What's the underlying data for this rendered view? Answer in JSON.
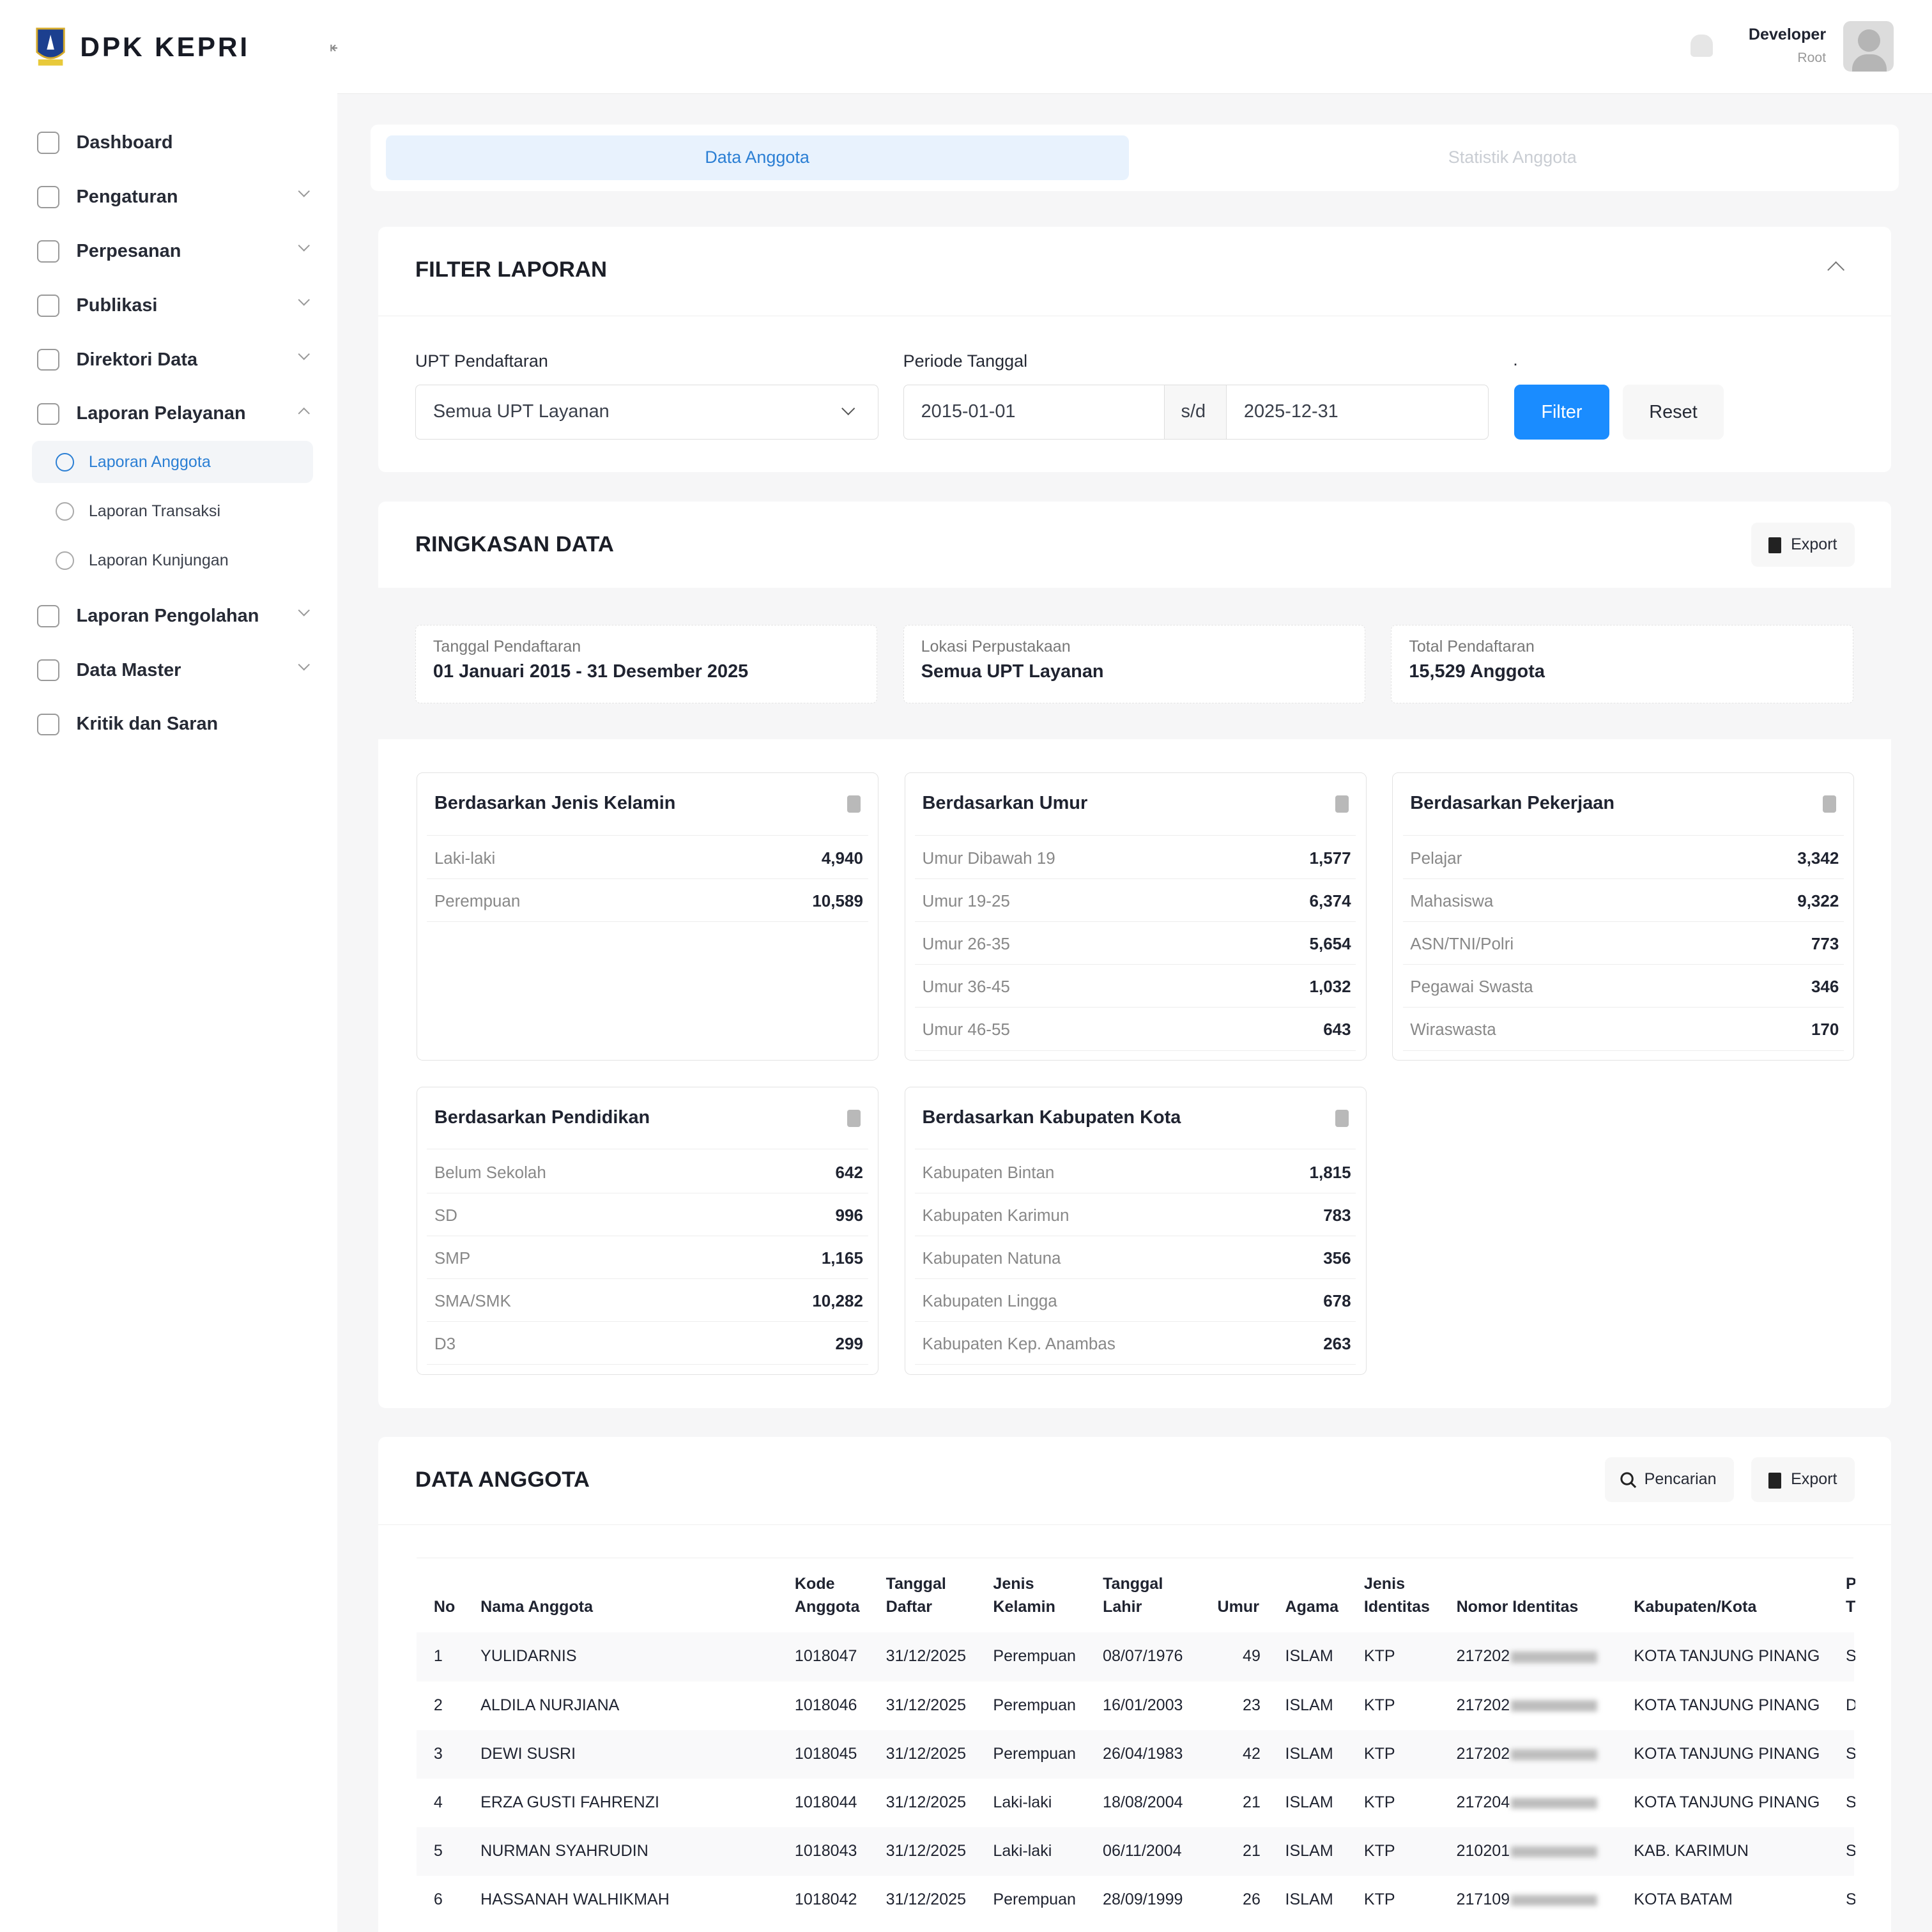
{
  "brand": {
    "title": "DPK KEPRI",
    "logo": "provincial-crest"
  },
  "sidebar": {
    "items": [
      {
        "label": "Dashboard",
        "icon": "activity-icon",
        "expandable": false
      },
      {
        "label": "Pengaturan",
        "icon": "gear-icon",
        "expandable": true
      },
      {
        "label": "Perpesanan",
        "icon": "mail-icon",
        "expandable": true
      },
      {
        "label": "Publikasi",
        "icon": "edit-icon",
        "expandable": true
      },
      {
        "label": "Direktori Data",
        "icon": "pointer-icon",
        "expandable": true
      },
      {
        "label": "Laporan Pelayanan",
        "icon": "report-icon",
        "expandable": true,
        "expanded": true
      },
      {
        "label": "Laporan Pengolahan",
        "icon": "report-icon",
        "expandable": true
      },
      {
        "label": "Data Master",
        "icon": "database-icon",
        "expandable": true
      },
      {
        "label": "Kritik dan Saran",
        "icon": "star-icon",
        "expandable": false
      }
    ],
    "subitems": [
      {
        "label": "Laporan Anggota",
        "active": true,
        "icon": "users-icon"
      },
      {
        "label": "Laporan Transaksi",
        "icon": "receipt-icon"
      },
      {
        "label": "Laporan Kunjungan",
        "icon": "location-icon"
      }
    ]
  },
  "header": {
    "user_name": "Developer",
    "user_role": "Root"
  },
  "tabs": [
    {
      "label": "Data Anggota",
      "active": true
    },
    {
      "label": "Statistik Anggota",
      "active": false
    }
  ],
  "filter": {
    "title": "FILTER LAPORAN",
    "upt_label": "UPT Pendaftaran",
    "upt_value": "Semua UPT Layanan",
    "periode_label": "Periode Tanggal",
    "date_from": "2015-01-01",
    "separator": "s/d",
    "date_to": "2025-12-31",
    "dot": ".",
    "filter_button": "Filter",
    "reset_button": "Reset"
  },
  "summary": {
    "title": "RINGKASAN DATA",
    "export": "Export",
    "boxes": [
      {
        "label": "Tanggal Pendaftaran",
        "value": "01 Januari 2015 - 31 Desember 2025"
      },
      {
        "label": "Lokasi Perpustakaan",
        "value": "Semua UPT Layanan"
      },
      {
        "label": "Total Pendaftaran",
        "value": "15,529 Anggota"
      }
    ],
    "stats": [
      {
        "title": "Berdasarkan Jenis Kelamin",
        "rows": [
          {
            "name": "Laki-laki",
            "count": "4,940"
          },
          {
            "name": "Perempuan",
            "count": "10,589"
          }
        ]
      },
      {
        "title": "Berdasarkan Umur",
        "rows": [
          {
            "name": "Umur Dibawah 19",
            "count": "1,577"
          },
          {
            "name": "Umur 19-25",
            "count": "6,374"
          },
          {
            "name": "Umur 26-35",
            "count": "5,654"
          },
          {
            "name": "Umur 36-45",
            "count": "1,032"
          },
          {
            "name": "Umur 46-55",
            "count": "643"
          }
        ]
      },
      {
        "title": "Berdasarkan Pekerjaan",
        "rows": [
          {
            "name": "Pelajar",
            "count": "3,342"
          },
          {
            "name": "Mahasiswa",
            "count": "9,322"
          },
          {
            "name": "ASN/TNI/Polri",
            "count": "773"
          },
          {
            "name": "Pegawai Swasta",
            "count": "346"
          },
          {
            "name": "Wiraswasta",
            "count": "170"
          }
        ]
      },
      {
        "title": "Berdasarkan Pendidikan",
        "rows": [
          {
            "name": "Belum Sekolah",
            "count": "642"
          },
          {
            "name": "SD",
            "count": "996"
          },
          {
            "name": "SMP",
            "count": "1,165"
          },
          {
            "name": "SMA/SMK",
            "count": "10,282"
          },
          {
            "name": "D3",
            "count": "299"
          }
        ]
      },
      {
        "title": "Berdasarkan Kabupaten Kota",
        "rows": [
          {
            "name": "Kabupaten Bintan",
            "count": "1,815"
          },
          {
            "name": "Kabupaten Karimun",
            "count": "783"
          },
          {
            "name": "Kabupaten Natuna",
            "count": "356"
          },
          {
            "name": "Kabupaten Lingga",
            "count": "678"
          },
          {
            "name": "Kabupaten Kep. Anambas",
            "count": "263"
          }
        ]
      }
    ]
  },
  "members": {
    "title": "DATA ANGGOTA",
    "search": "Pencarian",
    "export": "Export",
    "columns": [
      "No",
      "Nama Anggota",
      "Kode\nAnggota",
      "Tanggal\nDaftar",
      "Jenis\nKelamin",
      "Tanggal\nLahir",
      "Umur",
      "Agama",
      "Jenis\nIdentitas",
      "Nomor Identitas",
      "Kabupaten/Kota",
      "P\nT"
    ],
    "rows": [
      [
        "1",
        "YULIDARNIS",
        "1018047",
        "31/12/2025",
        "Perempuan",
        "08/07/1976",
        "49",
        "ISLAM",
        "KTP",
        "217202",
        "KOTA TANJUNG PINANG",
        "S"
      ],
      [
        "2",
        "ALDILA NURJIANA",
        "1018046",
        "31/12/2025",
        "Perempuan",
        "16/01/2003",
        "23",
        "ISLAM",
        "KTP",
        "217202",
        "KOTA TANJUNG PINANG",
        "D"
      ],
      [
        "3",
        "DEWI SUSRI",
        "1018045",
        "31/12/2025",
        "Perempuan",
        "26/04/1983",
        "42",
        "ISLAM",
        "KTP",
        "217202",
        "KOTA TANJUNG PINANG",
        "S"
      ],
      [
        "4",
        "ERZA GUSTI FAHRENZI",
        "1018044",
        "31/12/2025",
        "Laki-laki",
        "18/08/2004",
        "21",
        "ISLAM",
        "KTP",
        "217204",
        "KOTA TANJUNG PINANG",
        "S"
      ],
      [
        "5",
        "NURMAN SYAHRUDIN",
        "1018043",
        "31/12/2025",
        "Laki-laki",
        "06/11/2004",
        "21",
        "ISLAM",
        "KTP",
        "210201",
        "KAB. KARIMUN",
        "S"
      ],
      [
        "6",
        "HASSANAH WALHIKMAH",
        "1018042",
        "31/12/2025",
        "Perempuan",
        "28/09/1999",
        "26",
        "ISLAM",
        "KTP",
        "217109",
        "KOTA BATAM",
        "S"
      ]
    ]
  },
  "colors": {
    "accent": "#1a8cff",
    "active_tab_bg": "#e8f2fd",
    "active_text": "#2b7fd4"
  }
}
